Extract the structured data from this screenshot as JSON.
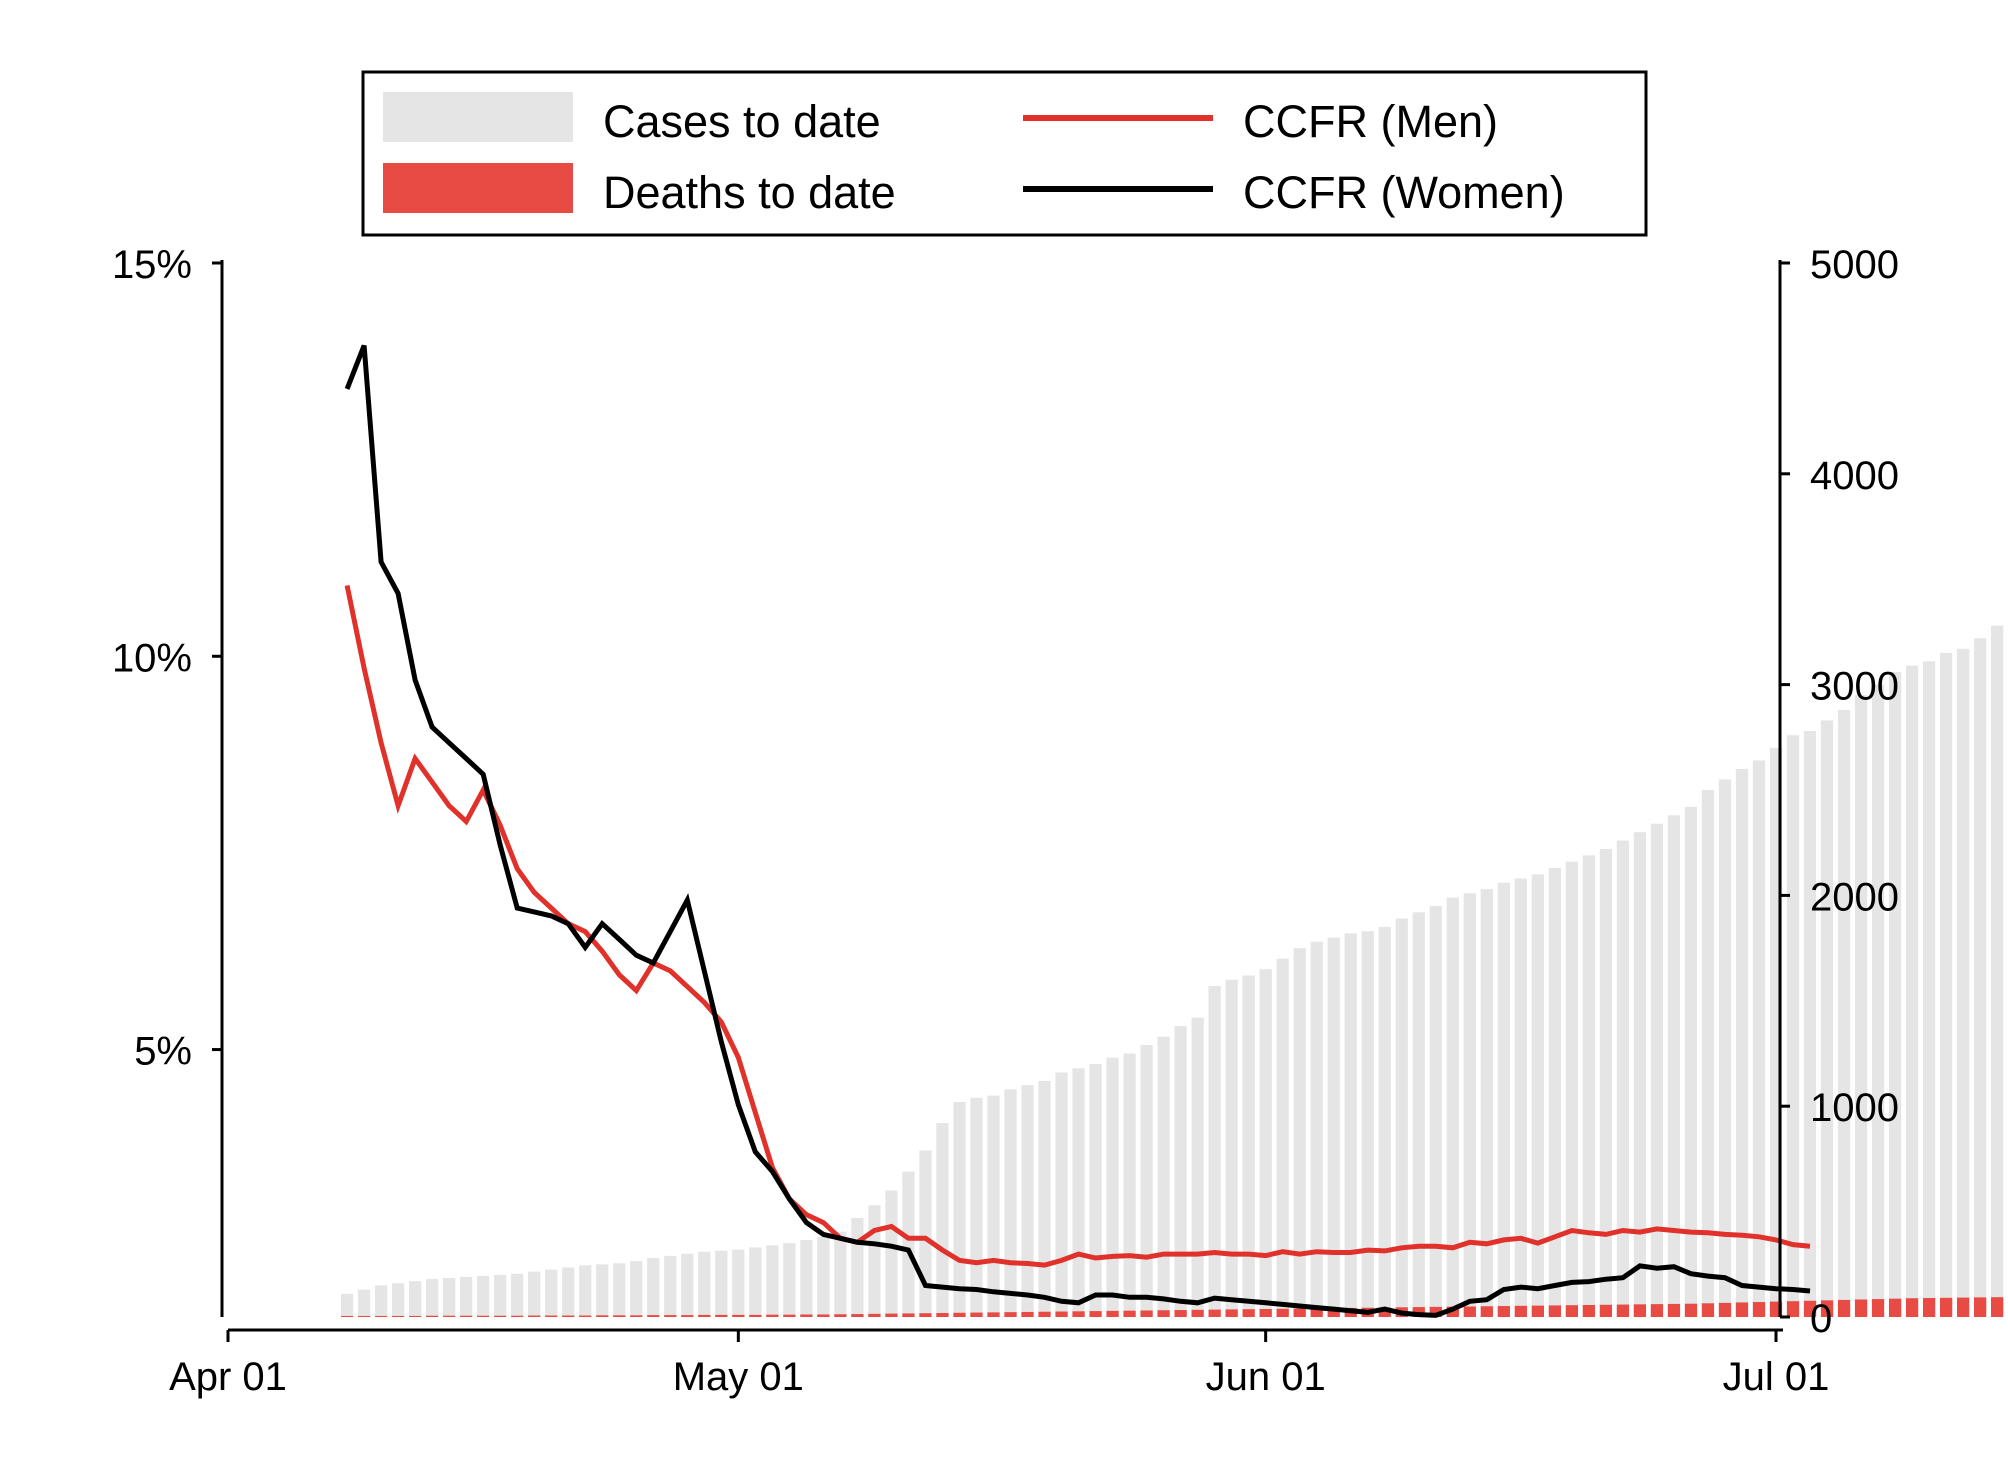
{
  "chart_data": {
    "type": "bar",
    "title": "",
    "xlabel": "",
    "ylabel": "",
    "x_ticks": [
      {
        "date": "2020-04-01",
        "label": "Apr 01"
      },
      {
        "date": "2020-05-01",
        "label": "May 01"
      },
      {
        "date": "2020-06-01",
        "label": "Jun 01"
      },
      {
        "date": "2020-07-01",
        "label": "Jul 01"
      }
    ],
    "x_range": [
      "2020-04-01",
      "2020-07-01"
    ],
    "y_left": {
      "range": [
        0.016,
        0.15
      ],
      "ticks": [
        0.05,
        0.1,
        0.15
      ],
      "tick_labels": [
        "5%",
        "10%",
        "15%"
      ]
    },
    "y_right": {
      "range": [
        0,
        5000
      ],
      "ticks": [
        0,
        1000,
        2000,
        3000,
        4000,
        5000
      ],
      "tick_labels": [
        "0",
        "1000",
        "2000",
        "3000",
        "4000",
        "5000"
      ]
    },
    "legend": {
      "position": "top",
      "entries": [
        {
          "key": "cases",
          "label": "Cases to date",
          "kind": "bar",
          "color": "#e5e5e5"
        },
        {
          "key": "men",
          "label": "CCFR (Men)",
          "kind": "line",
          "color": "#e0312a"
        },
        {
          "key": "deaths",
          "label": "Deaths to date",
          "kind": "bar",
          "color": "#e84a44"
        },
        {
          "key": "women",
          "label": "CCFR (Women)",
          "kind": "line",
          "color": "#000000"
        }
      ]
    },
    "bar_start_date": "2020-04-08",
    "bar_end_date": "2020-06-29",
    "cases_to_date": [
      110,
      130,
      150,
      160,
      170,
      180,
      185,
      190,
      195,
      200,
      205,
      215,
      225,
      235,
      245,
      250,
      255,
      265,
      280,
      290,
      300,
      310,
      315,
      320,
      330,
      340,
      350,
      365,
      380,
      405,
      470,
      530,
      600,
      690,
      790,
      920,
      1020,
      1040,
      1050,
      1080,
      1100,
      1120,
      1160,
      1180,
      1200,
      1230,
      1250,
      1290,
      1330,
      1380,
      1420,
      1570,
      1600,
      1620,
      1650,
      1700,
      1750,
      1780,
      1800,
      1820,
      1830,
      1850,
      1890,
      1920,
      1950,
      1990,
      2010,
      2030,
      2060,
      2080,
      2100,
      2130,
      2160,
      2190,
      2220,
      2260,
      2300,
      2340,
      2380,
      2420,
      2500,
      2550,
      2600,
      2640,
      2700,
      2760,
      2780,
      2830,
      2880,
      2950,
      3000,
      3060,
      3090,
      3110,
      3150,
      3170,
      3220,
      3280,
      3310
    ],
    "deaths_to_date": [
      5,
      5,
      5,
      5,
      5,
      6,
      6,
      6,
      6,
      6,
      6,
      7,
      7,
      7,
      7,
      8,
      8,
      8,
      9,
      9,
      9,
      10,
      10,
      10,
      10,
      11,
      11,
      12,
      12,
      13,
      14,
      15,
      16,
      17,
      18,
      19,
      20,
      21,
      22,
      23,
      24,
      25,
      26,
      27,
      28,
      29,
      30,
      31,
      32,
      33,
      34,
      35,
      36,
      37,
      38,
      39,
      40,
      41,
      42,
      43,
      44,
      45,
      46,
      47,
      48,
      49,
      50,
      51,
      52,
      53,
      54,
      55,
      56,
      57,
      58,
      59,
      60,
      61,
      62,
      63,
      65,
      67,
      69,
      71,
      73,
      75,
      77,
      79,
      81,
      83,
      85,
      87,
      89,
      90,
      91,
      92,
      93,
      94,
      95
    ],
    "series": [
      {
        "name": "CCFR (Men)",
        "start_date": "2020-04-08",
        "values": [
          0.109,
          0.0985,
          0.089,
          0.081,
          0.087,
          0.084,
          0.081,
          0.079,
          0.083,
          0.0785,
          0.073,
          0.07,
          0.068,
          0.066,
          0.065,
          0.0625,
          0.0595,
          0.0575,
          0.061,
          0.06,
          0.058,
          0.056,
          0.0535,
          0.049,
          0.042,
          0.035,
          0.031,
          0.029,
          0.028,
          0.026,
          0.0255,
          0.027,
          0.0275,
          0.026,
          0.026,
          0.0245,
          0.0232,
          0.0229,
          0.0232,
          0.0229,
          0.0228,
          0.0226,
          0.0232,
          0.024,
          0.0235,
          0.0237,
          0.0238,
          0.0236,
          0.024,
          0.024,
          0.024,
          0.0242,
          0.024,
          0.024,
          0.0238,
          0.0243,
          0.024,
          0.0243,
          0.0242,
          0.0242,
          0.0245,
          0.0244,
          0.0248,
          0.025,
          0.025,
          0.0248,
          0.0255,
          0.0253,
          0.0258,
          0.026,
          0.0254,
          0.0262,
          0.027,
          0.0267,
          0.0265,
          0.027,
          0.0268,
          0.0272,
          0.027,
          0.0268,
          0.0267,
          0.0265,
          0.0264,
          0.0262,
          0.0258,
          0.0252,
          0.025
        ]
      },
      {
        "name": "CCFR (Women)",
        "start_date": "2020-04-08",
        "values": [
          0.134,
          0.1395,
          0.112,
          0.108,
          0.097,
          0.091,
          0.089,
          0.087,
          0.085,
          0.076,
          0.068,
          0.0675,
          0.067,
          0.066,
          0.063,
          0.066,
          0.064,
          0.062,
          0.061,
          0.065,
          0.069,
          0.06,
          0.051,
          0.043,
          0.037,
          0.0345,
          0.031,
          0.028,
          0.0265,
          0.026,
          0.0255,
          0.0253,
          0.025,
          0.0245,
          0.02,
          0.0198,
          0.0196,
          0.0195,
          0.0192,
          0.019,
          0.0188,
          0.0185,
          0.018,
          0.0178,
          0.0188,
          0.0188,
          0.0185,
          0.0185,
          0.0183,
          0.018,
          0.0178,
          0.0184,
          0.0182,
          0.018,
          0.0178,
          0.0176,
          0.0174,
          0.0172,
          0.017,
          0.0168,
          0.0166,
          0.017,
          0.0165,
          0.0163,
          0.0162,
          0.017,
          0.018,
          0.0182,
          0.0195,
          0.0198,
          0.0196,
          0.02,
          0.0204,
          0.0205,
          0.0208,
          0.021,
          0.0225,
          0.0222,
          0.0224,
          0.0215,
          0.0212,
          0.021,
          0.02,
          0.0198,
          0.0196,
          0.0195,
          0.0193
        ]
      }
    ]
  }
}
